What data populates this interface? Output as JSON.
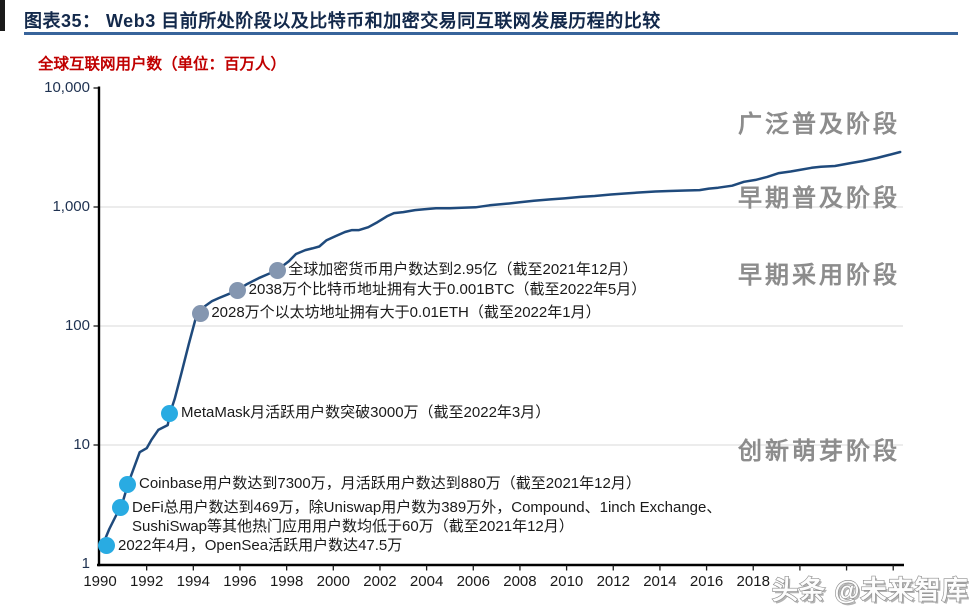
{
  "header": {
    "title": "图表35：  Web3 目前所处阶段以及比特币和加密交易同互联网发展历程的比较"
  },
  "watermark": {
    "text": "头条 @未来智库"
  },
  "chart_data": {
    "type": "line",
    "title": "全球互联网用户数（单位：百万人）",
    "y_axis": {
      "scale": "log",
      "range": [
        1,
        10000
      ],
      "ticks": [
        "10,000",
        "1,000",
        "100",
        "10",
        "1"
      ],
      "grid": true
    },
    "x_axis": {
      "range": [
        1990,
        2024
      ],
      "ticks": [
        "1990",
        "1992",
        "1994",
        "1996",
        "1998",
        "2000",
        "2002",
        "2004",
        "2006",
        "2008",
        "2010",
        "2012",
        "2014",
        "2016",
        "2018"
      ]
    },
    "colors": {
      "line": "#1f4a7c",
      "gray_dot": "#8496b0",
      "cyan_dot": "#29abe2",
      "grid": "#d9d9d9",
      "title_red": "#c00000",
      "stage_gray": "#8c8c8c"
    },
    "stages": [
      {
        "label": "广泛普及阶段"
      },
      {
        "label": "早期普及阶段"
      },
      {
        "label": "早期采用阶段"
      },
      {
        "label": "创新萌芽阶段"
      }
    ],
    "series": [
      {
        "name": "全球互联网用户数",
        "color": "#1f4a7c",
        "points": [
          [
            1990.1,
            1.42
          ],
          [
            1990.4,
            1.97
          ],
          [
            1990.7,
            2.58
          ],
          [
            1990.9,
            2.96
          ],
          [
            1991.2,
            4.7
          ],
          [
            1991.5,
            6.8
          ],
          [
            1991.7,
            8.7
          ],
          [
            1992.0,
            9.4
          ],
          [
            1992.2,
            11
          ],
          [
            1992.5,
            13.4
          ],
          [
            1992.9,
            14.7
          ],
          [
            1993.0,
            18.5
          ],
          [
            1993.2,
            24.4
          ],
          [
            1993.5,
            41
          ],
          [
            1993.8,
            70
          ],
          [
            1994.1,
            116
          ],
          [
            1994.3,
            128
          ],
          [
            1994.5,
            147
          ],
          [
            1994.8,
            162
          ],
          [
            1995.1,
            172
          ],
          [
            1995.5,
            185
          ],
          [
            1995.9,
            200
          ],
          [
            1996.3,
            225
          ],
          [
            1996.8,
            252
          ],
          [
            1997.2,
            273
          ],
          [
            1997.6,
            295
          ],
          [
            1998.1,
            351
          ],
          [
            1998.4,
            403
          ],
          [
            1998.8,
            434
          ],
          [
            1999.1,
            449
          ],
          [
            1999.4,
            466
          ],
          [
            1999.7,
            524
          ],
          [
            2000.1,
            570
          ],
          [
            2000.5,
            616
          ],
          [
            2000.8,
            640
          ],
          [
            2001.1,
            640
          ],
          [
            2001.5,
            677
          ],
          [
            2001.9,
            746
          ],
          [
            2002.3,
            836
          ],
          [
            2002.6,
            888
          ],
          [
            2003.0,
            906
          ],
          [
            2003.5,
            941
          ],
          [
            2003.9,
            959
          ],
          [
            2004.4,
            977
          ],
          [
            2005.0,
            977
          ],
          [
            2005.5,
            986
          ],
          [
            2006.1,
            995
          ],
          [
            2006.7,
            1034
          ],
          [
            2007.4,
            1064
          ],
          [
            2008.0,
            1095
          ],
          [
            2008.6,
            1127
          ],
          [
            2009.3,
            1158
          ],
          [
            2009.9,
            1181
          ],
          [
            2010.6,
            1215
          ],
          [
            2011.2,
            1238
          ],
          [
            2011.9,
            1273
          ],
          [
            2012.5,
            1298
          ],
          [
            2013.1,
            1323
          ],
          [
            2013.8,
            1349
          ],
          [
            2014.4,
            1362
          ],
          [
            2015.1,
            1375
          ],
          [
            2015.7,
            1388
          ],
          [
            2016.1,
            1427
          ],
          [
            2016.5,
            1453
          ],
          [
            2016.8,
            1481
          ],
          [
            2017.1,
            1509
          ],
          [
            2017.6,
            1629
          ],
          [
            2018.1,
            1689
          ],
          [
            2018.6,
            1790
          ],
          [
            2019.1,
            1927
          ],
          [
            2019.6,
            1988
          ],
          [
            2020.0,
            2052
          ],
          [
            2020.5,
            2136
          ],
          [
            2020.9,
            2180
          ],
          [
            2021.5,
            2212
          ],
          [
            2022.2,
            2344
          ],
          [
            2022.7,
            2437
          ],
          [
            2023.3,
            2582
          ],
          [
            2023.8,
            2735
          ],
          [
            2024.3,
            2897
          ]
        ]
      }
    ],
    "annotations": [
      {
        "year": 1997.6,
        "value": 295,
        "dot_color": "#8496b0",
        "lines": [
          "全球加密货币用户数达到2.95亿（截至2021年12月）"
        ]
      },
      {
        "year": 1995.9,
        "value": 200,
        "dot_color": "#8496b0",
        "lines": [
          "2038万个比特币地址拥有大于0.001BTC（截至2022年5月）"
        ]
      },
      {
        "year": 1994.3,
        "value": 128,
        "dot_color": "#8496b0",
        "lines": [
          "2028万个以太坊地址拥有大于0.01ETH（截至2022年1月）"
        ]
      },
      {
        "year": 1993.0,
        "value": 18.5,
        "dot_color": "#29abe2",
        "lines": [
          "MetaMask月活跃用户数突破3000万（截至2022年3月）"
        ]
      },
      {
        "year": 1991.2,
        "value": 4.7,
        "dot_color": "#29abe2",
        "lines": [
          "Coinbase用户数达到7300万，月活跃用户数达到880万（截至2021年12月）"
        ]
      },
      {
        "year": 1990.9,
        "value": 2.96,
        "dot_color": "#29abe2",
        "lines": [
          "DeFi总用户数达到469万，除Uniswap用户数为389万外，Compound、1inch Exchange、",
          "SushiSwap等其他热门应用用户数均低于60万（截至2021年12月）"
        ]
      },
      {
        "year": 1990.3,
        "value": 1.42,
        "dot_color": "#29abe2",
        "lines": [
          "2022年4月，OpenSea活跃用户数达47.5万"
        ]
      }
    ]
  }
}
